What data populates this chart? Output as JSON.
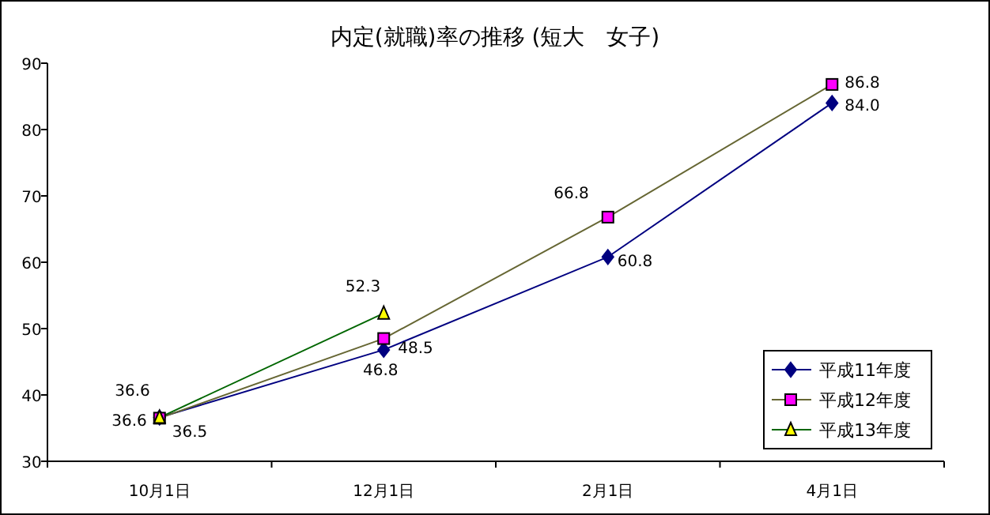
{
  "chart_data": {
    "type": "line",
    "title": "内定(就職)率の推移 (短大　女子)",
    "categories": [
      "10月1日",
      "12月1日",
      "2月1日",
      "4月1日"
    ],
    "ylim": [
      30,
      90
    ],
    "yticks": [
      30,
      40,
      50,
      60,
      70,
      80,
      90
    ],
    "legend": "bottom right",
    "grid": false,
    "series": [
      {
        "name": "平成11年度",
        "color": "#000080",
        "colors": [
          "#000080",
          "#000080",
          "#000080",
          "#000080"
        ],
        "marker": "diamond",
        "values": [
          36.6,
          46.8,
          60.8,
          84.0
        ],
        "value_labels": [
          "36.6",
          "46.8",
          "60.8",
          "84.0"
        ]
      },
      {
        "name": "平成12年度",
        "color": "#666633",
        "colors": [
          "#ff00ff",
          "#ff00ff",
          "#ff00ff",
          "#ff00ff"
        ],
        "marker": "square",
        "values": [
          36.5,
          48.5,
          66.8,
          86.8
        ],
        "value_labels": [
          "36.5",
          "48.5",
          "66.8",
          "86.8"
        ]
      },
      {
        "name": "平成13年度",
        "color": "#006600",
        "colors": [
          "#ffff00",
          "#ffff00",
          null,
          null
        ],
        "marker": "triangle",
        "values": [
          36.6,
          52.3,
          null,
          null
        ],
        "value_labels": [
          "36.6",
          "52.3",
          null,
          null
        ]
      }
    ]
  }
}
